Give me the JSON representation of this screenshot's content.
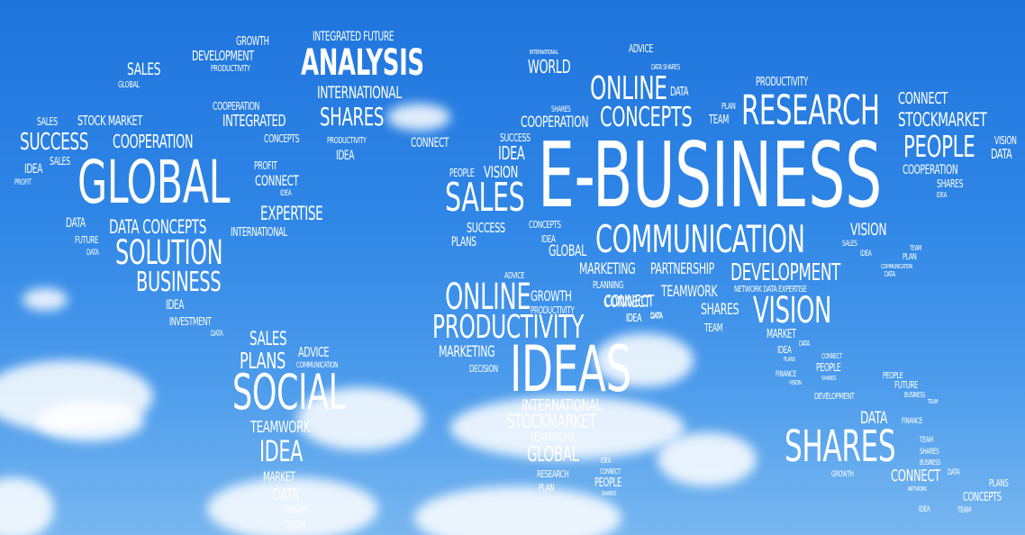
{
  "scene": {
    "description_words_only": true,
    "words": {
      "na_growth": "GROWTH",
      "na_development": "DEVELOPMENT",
      "na_productivity": "PRODUCTIVITY",
      "na_sales": "SALES",
      "na_global": "GLOBAL",
      "na_integrated_future": "INTEGRATED FUTURE",
      "na_analysis": "ANALYSIS",
      "na_international": "INTERNATIONAL",
      "na_shares": "SHARES",
      "na_productivity2": "PRODUCTIVITY",
      "na_idea": "IDEA",
      "na_connect": "CONNECT",
      "na_cooperation": "COOPERATION",
      "na_integrated": "INTEGRATED",
      "na_concepts": "CONCEPTS",
      "na_sales2": "SALES",
      "na_stock_market": "STOCK MARKET",
      "na_success": "SUCCESS",
      "na_cooperation2": "COOPERATION",
      "na_sales3": "SALES",
      "na_idea2": "IDEA",
      "na_profit": "PROFIT",
      "na_global_big": "GLOBAL",
      "na_profit2": "PROFIT",
      "na_connect2": "CONNECT",
      "na_idea3": "IDEA",
      "na_expertise": "EXPERTISE",
      "na_data": "DATA",
      "na_data_concepts": "DATA CONCEPTS",
      "na_international2": "INTERNATIONAL",
      "na_future": "FUTURE",
      "na_data2": "DATA",
      "na_solution": "SOLUTION",
      "na_business": "BUSINESS",
      "na_idea4": "IDEA",
      "na_investment": "INVESTMENT",
      "na_data3": "DATA",
      "sa_sales": "SALES",
      "sa_plans": "PLANS",
      "sa_advice": "ADVICE",
      "sa_communication": "COMMUNICATION",
      "sa_social": "SOCIAL",
      "sa_teamwork": "TEAMWORK",
      "sa_idea": "IDEA",
      "sa_market": "MARKET",
      "sa_data": "DATA",
      "sa_growth": "GROWTH",
      "sa_team": "TEAM",
      "eu_international": "INTERNATIONAL",
      "eu_world": "WORLD",
      "eu_advice": "ADVICE",
      "eu_data_shares": "DATA SHARES",
      "eu_online": "ONLINE",
      "eu_data": "DATA",
      "eu_shares": "SHARES",
      "eu_cooperation": "COOPERATION",
      "eu_concepts": "CONCEPTS",
      "eu_team": "TEAM",
      "eu_plan": "PLAN",
      "eu_success": "SUCCESS",
      "eu_idea": "IDEA",
      "eu_people": "PEOPLE",
      "eu_vision": "VISION",
      "eu_sales": "SALES",
      "eu_ebusiness": "E-BUSINESS",
      "eu_concepts2": "CONCEPTS",
      "eu_success2": "SUCCESS",
      "eu_plans": "PLANS",
      "eu_idea2": "IDEA",
      "eu_global": "GLOBAL",
      "eu_communication": "COMMUNICATION",
      "as_productivity": "PRODUCTIVITY",
      "as_research": "RESEARCH",
      "as_connect": "CONNECT",
      "as_stockmarket": "STOCKMARKET",
      "as_people": "PEOPLE",
      "as_vision": "VISION",
      "as_data": "DATA",
      "as_cooperation": "COOPERATION",
      "as_shares": "SHARES",
      "as_idea": "IDEA",
      "as_vision2": "VISION",
      "as_sales": "SALES",
      "as_idea2": "IDEA",
      "as_team": "TEAM",
      "as_plan": "PLAN",
      "as_communication": "COMMUNICATION",
      "as_data2": "DATA",
      "as_marketing": "MARKETING",
      "as_partnership": "PARTNERSHIP",
      "as_development": "DEVELOPMENT",
      "as_planning": "PLANNING",
      "as_teamwork": "TEAMWORK",
      "as_network_data_expertise": "NETWORK DATA EXPERTISE",
      "as_connect2": "CONNECT",
      "as_idea3": "IDEA",
      "as_data3": "DATA",
      "as_shares2": "SHARES",
      "as_vision3": "VISION",
      "as_team2": "TEAM",
      "as_market": "MARKET",
      "as_idea4": "IDEA",
      "as_data4": "DATA",
      "as_plans": "PLANS",
      "as_finance": "FINANCE",
      "as_connect3": "CONNECT",
      "as_people2": "PEOPLE",
      "as_shares3": "SHARES",
      "as_vision4": "VISION",
      "as_development2": "DEVELOPMENT",
      "af_advice": "ADVICE",
      "af_online": "ONLINE",
      "af_growth": "GROWTH",
      "af_productivity": "PRODUCTIVITY",
      "af_connect": "CONNECT",
      "af_idea": "IDEA",
      "af_data": "DATA",
      "af_productivity_big": "PRODUCTIVITY",
      "af_marketing": "MARKETING",
      "af_decision": "DECISION",
      "af_ideas": "IDEAS",
      "af_international": "INTERNATIONAL",
      "af_stockmarket": "STOCKMARKET",
      "af_teamwork": "TEAMWORK",
      "af_global": "GLOBAL",
      "af_research": "RESEARCH",
      "af_plan": "PLAN",
      "af_idea2": "IDEA",
      "af_connect2": "CONNECT",
      "af_people": "PEOPLE",
      "af_shares": "SHARES",
      "au_people": "PEOPLE",
      "au_future": "FUTURE",
      "au_business": "BUSINESS",
      "au_team": "TEAM",
      "au_data": "DATA",
      "au_finance": "FINANCE",
      "au_shares": "SHARES",
      "au_team2": "TEAM",
      "au_shares2": "SHARES",
      "au_business2": "BUSINESS",
      "au_growth": "GROWTH",
      "au_connect": "CONNECT",
      "au_data2": "DATA",
      "au_network": "NETWORK",
      "au_plans": "PLANS",
      "au_concepts": "CONCEPTS",
      "au_idea": "IDEA",
      "au_team3": "TEAM"
    }
  }
}
